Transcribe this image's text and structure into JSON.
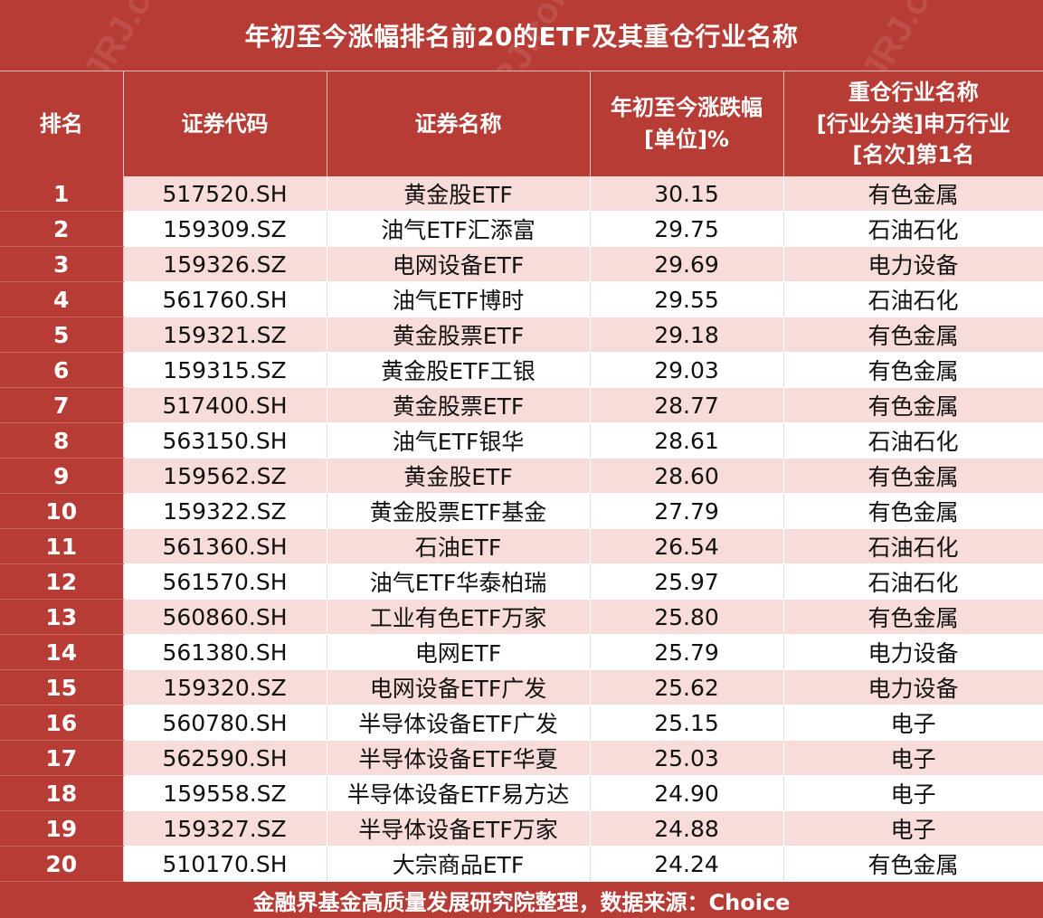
{
  "title": "年初至今涨幅排名前20的ETF及其重仓行业名称",
  "headers": {
    "rank": "排名",
    "code": "证券代码",
    "name": "证券名称",
    "change_line1": "年初至今涨跌幅",
    "change_line2": "[单位]%",
    "industry_line1": "重仓行业名称",
    "industry_line2": "[行业分类]申万行业",
    "industry_line3": "[名次]第1名"
  },
  "rows": [
    {
      "rank": "1",
      "code": "517520.SH",
      "name": "黄金股ETF",
      "change": "30.15",
      "industry": "有色金属"
    },
    {
      "rank": "2",
      "code": "159309.SZ",
      "name": "油气ETF汇添富",
      "change": "29.75",
      "industry": "石油石化"
    },
    {
      "rank": "3",
      "code": "159326.SZ",
      "name": "电网设备ETF",
      "change": "29.69",
      "industry": "电力设备"
    },
    {
      "rank": "4",
      "code": "561760.SH",
      "name": "油气ETF博时",
      "change": "29.55",
      "industry": "石油石化"
    },
    {
      "rank": "5",
      "code": "159321.SZ",
      "name": "黄金股票ETF",
      "change": "29.18",
      "industry": "有色金属"
    },
    {
      "rank": "6",
      "code": "159315.SZ",
      "name": "黄金股ETF工银",
      "change": "29.03",
      "industry": "有色金属"
    },
    {
      "rank": "7",
      "code": "517400.SH",
      "name": "黄金股票ETF",
      "change": "28.77",
      "industry": "有色金属"
    },
    {
      "rank": "8",
      "code": "563150.SH",
      "name": "油气ETF银华",
      "change": "28.61",
      "industry": "石油石化"
    },
    {
      "rank": "9",
      "code": "159562.SZ",
      "name": "黄金股ETF",
      "change": "28.60",
      "industry": "有色金属"
    },
    {
      "rank": "10",
      "code": "159322.SZ",
      "name": "黄金股票ETF基金",
      "change": "27.79",
      "industry": "有色金属"
    },
    {
      "rank": "11",
      "code": "561360.SH",
      "name": "石油ETF",
      "change": "26.54",
      "industry": "石油石化"
    },
    {
      "rank": "12",
      "code": "561570.SH",
      "name": "油气ETF华泰柏瑞",
      "change": "25.97",
      "industry": "石油石化"
    },
    {
      "rank": "13",
      "code": "560860.SH",
      "name": "工业有色ETF万家",
      "change": "25.80",
      "industry": "有色金属"
    },
    {
      "rank": "14",
      "code": "561380.SH",
      "name": "电网ETF",
      "change": "25.79",
      "industry": "电力设备"
    },
    {
      "rank": "15",
      "code": "159320.SZ",
      "name": "电网设备ETF广发",
      "change": "25.62",
      "industry": "电力设备"
    },
    {
      "rank": "16",
      "code": "560780.SH",
      "name": "半导体设备ETF广发",
      "change": "25.15",
      "industry": "电子"
    },
    {
      "rank": "17",
      "code": "562590.SH",
      "name": "半导体设备ETF华夏",
      "change": "25.03",
      "industry": "电子"
    },
    {
      "rank": "18",
      "code": "159558.SZ",
      "name": "半导体设备ETF易方达",
      "change": "24.90",
      "industry": "电子"
    },
    {
      "rank": "19",
      "code": "159327.SZ",
      "name": "半导体设备ETF万家",
      "change": "24.88",
      "industry": "电子"
    },
    {
      "rank": "20",
      "code": "510170.SH",
      "name": "大宗商品ETF",
      "change": "24.24",
      "industry": "有色金属"
    }
  ],
  "footer": "金融界基金高质量发展研究院整理，数据来源：Choice",
  "watermark": "金融界 JRJ.com",
  "colors": {
    "header_bg": "#b83c36",
    "stripe_bg": "#f8dcd9",
    "plain_bg": "#ffffff",
    "header_text": "#ffffff"
  }
}
